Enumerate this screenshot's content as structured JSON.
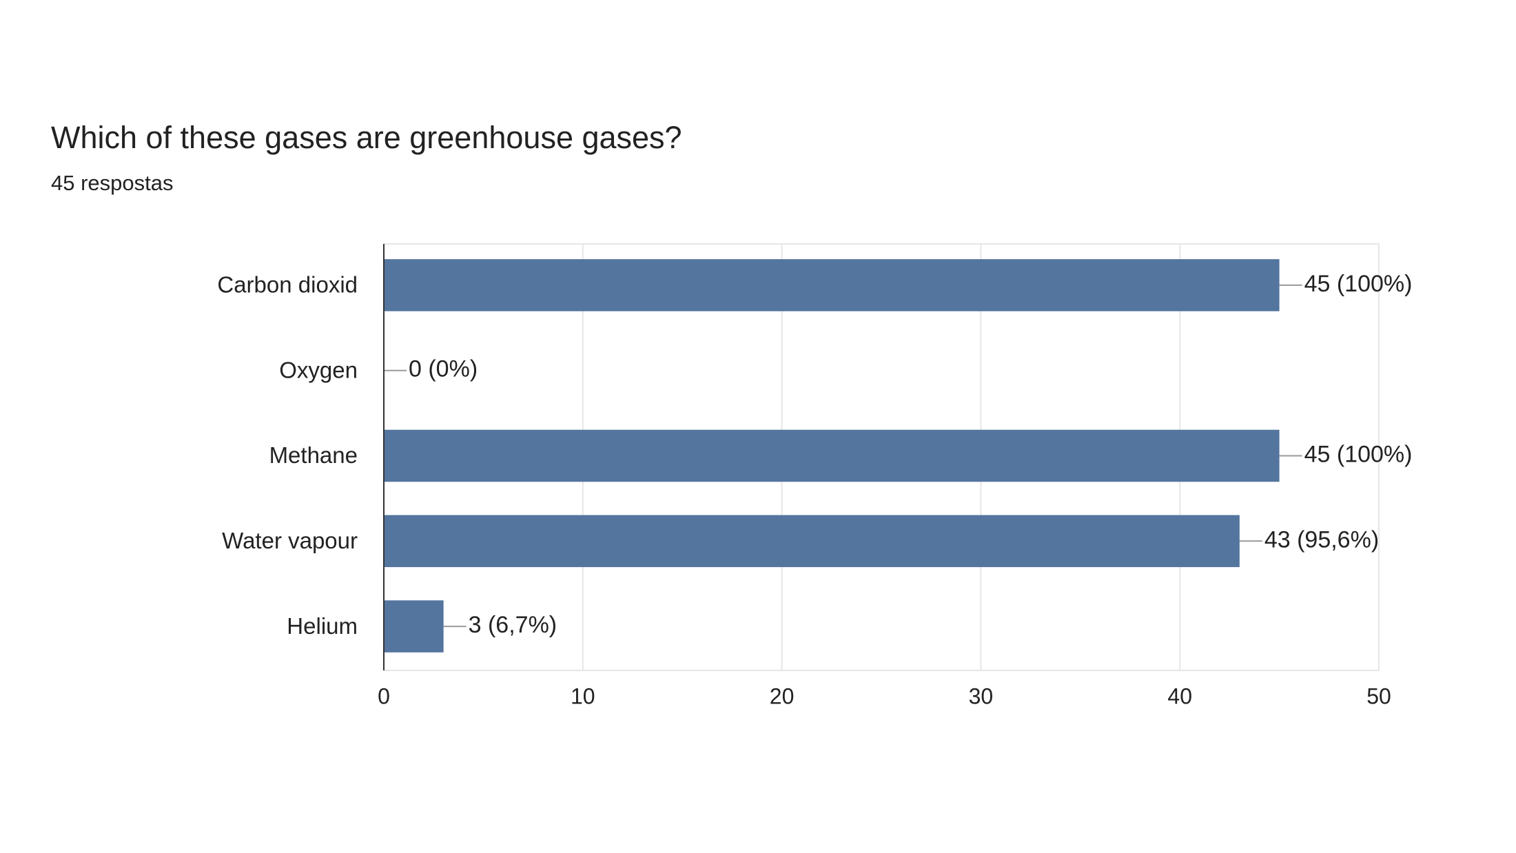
{
  "chart_data": {
    "type": "bar",
    "orientation": "horizontal",
    "title": "Which of these gases are greenhouse gases?",
    "subtitle": "45 respostas",
    "categories": [
      "Carbon dioxid",
      "Oxygen",
      "Methane",
      "Water vapour",
      "Helium"
    ],
    "values": [
      45,
      0,
      45,
      43,
      3
    ],
    "value_labels": [
      "45 (100%)",
      "0 (0%)",
      "45 (100%)",
      "43 (95,6%)",
      "3 (6,7%)"
    ],
    "color": "#54759e",
    "xlim": [
      0,
      50
    ],
    "xticks": [
      0,
      10,
      20,
      30,
      40,
      50
    ],
    "grid": true
  }
}
